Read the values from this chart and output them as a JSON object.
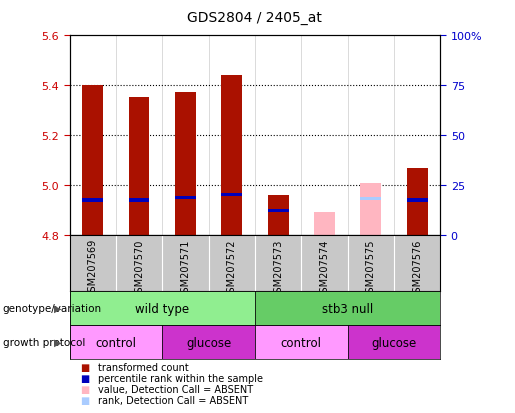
{
  "title": "GDS2804 / 2405_at",
  "samples": [
    "GSM207569",
    "GSM207570",
    "GSM207571",
    "GSM207572",
    "GSM207573",
    "GSM207574",
    "GSM207575",
    "GSM207576"
  ],
  "ylim_left": [
    4.8,
    5.6
  ],
  "ylim_right": [
    0,
    100
  ],
  "yticks_left": [
    4.8,
    5.0,
    5.2,
    5.4,
    5.6
  ],
  "yticks_right": [
    0,
    25,
    50,
    75,
    100
  ],
  "ytick_right_labels": [
    "0",
    "25",
    "50",
    "75",
    "100%"
  ],
  "bar_bottom": 4.8,
  "red_values": [
    5.4,
    5.35,
    5.37,
    5.44,
    4.96,
    null,
    null,
    5.07
  ],
  "blue_values": [
    4.935,
    4.935,
    4.945,
    4.955,
    4.895,
    null,
    null,
    4.935
  ],
  "pink_values": [
    null,
    null,
    null,
    null,
    null,
    4.895,
    5.01,
    null
  ],
  "lightblue_values": [
    null,
    null,
    null,
    null,
    null,
    null,
    4.94,
    null
  ],
  "absent_mask": [
    false,
    false,
    false,
    false,
    false,
    true,
    true,
    false
  ],
  "genotype_groups": [
    {
      "label": "wild type",
      "start": 0,
      "end": 4,
      "color": "#90EE90"
    },
    {
      "label": "stb3 null",
      "start": 4,
      "end": 8,
      "color": "#66CC66"
    }
  ],
  "protocol_groups": [
    {
      "label": "control",
      "start": 0,
      "end": 2,
      "color": "#FF99FF"
    },
    {
      "label": "glucose",
      "start": 2,
      "end": 4,
      "color": "#CC33CC"
    },
    {
      "label": "control",
      "start": 4,
      "end": 6,
      "color": "#FF99FF"
    },
    {
      "label": "glucose",
      "start": 6,
      "end": 8,
      "color": "#CC33CC"
    }
  ],
  "bar_width": 0.45,
  "red_color": "#AA1100",
  "blue_color": "#0000BB",
  "pink_color": "#FFB6C1",
  "lightblue_color": "#AACCFF",
  "grid_color": "#000000",
  "left_tick_color": "#CC0000",
  "right_tick_color": "#0000CC",
  "blue_bar_height": 0.012,
  "lightblue_bar_height": 0.012,
  "legend_items": [
    {
      "color": "#AA1100",
      "label": "transformed count"
    },
    {
      "color": "#0000BB",
      "label": "percentile rank within the sample"
    },
    {
      "color": "#FFB6C1",
      "label": "value, Detection Call = ABSENT"
    },
    {
      "color": "#AACCFF",
      "label": "rank, Detection Call = ABSENT"
    }
  ]
}
